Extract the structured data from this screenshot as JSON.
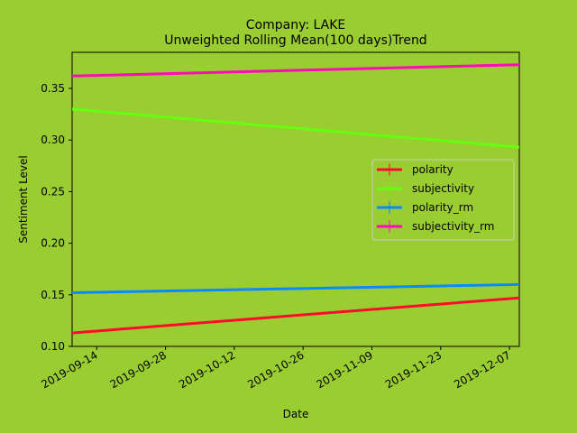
{
  "chart_data": {
    "type": "line",
    "title": "Company: LAKE",
    "subtitle": "Unweighted Rolling Mean(100 days)Trend",
    "xlabel": "Date",
    "ylabel": "Sentiment Level",
    "x_range": [
      "2019-09-09",
      "2019-12-09"
    ],
    "ylim": [
      0.1,
      0.385
    ],
    "x_ticks": [
      "2019-09-14",
      "2019-09-28",
      "2019-10-12",
      "2019-10-26",
      "2019-11-09",
      "2019-11-23",
      "2019-12-07"
    ],
    "y_ticks": [
      "0.10",
      "0.15",
      "0.20",
      "0.25",
      "0.30",
      "0.35"
    ],
    "grid": false,
    "legend_position": "center-right",
    "series": [
      {
        "name": "polarity",
        "color": "#ff0a2a",
        "x": [
          "2019-09-09",
          "2019-12-09"
        ],
        "values": [
          0.113,
          0.147
        ]
      },
      {
        "name": "subjectivity",
        "color": "#66ff0f",
        "x": [
          "2019-09-09",
          "2019-12-09"
        ],
        "values": [
          0.33,
          0.293
        ]
      },
      {
        "name": "polarity_rm",
        "color": "#0a8aff",
        "x": [
          "2019-09-09",
          "2019-12-09"
        ],
        "values": [
          0.152,
          0.16
        ]
      },
      {
        "name": "subjectivity_rm",
        "color": "#ff0ab8",
        "x": [
          "2019-09-09",
          "2019-12-09"
        ],
        "values": [
          0.362,
          0.373
        ]
      }
    ]
  }
}
